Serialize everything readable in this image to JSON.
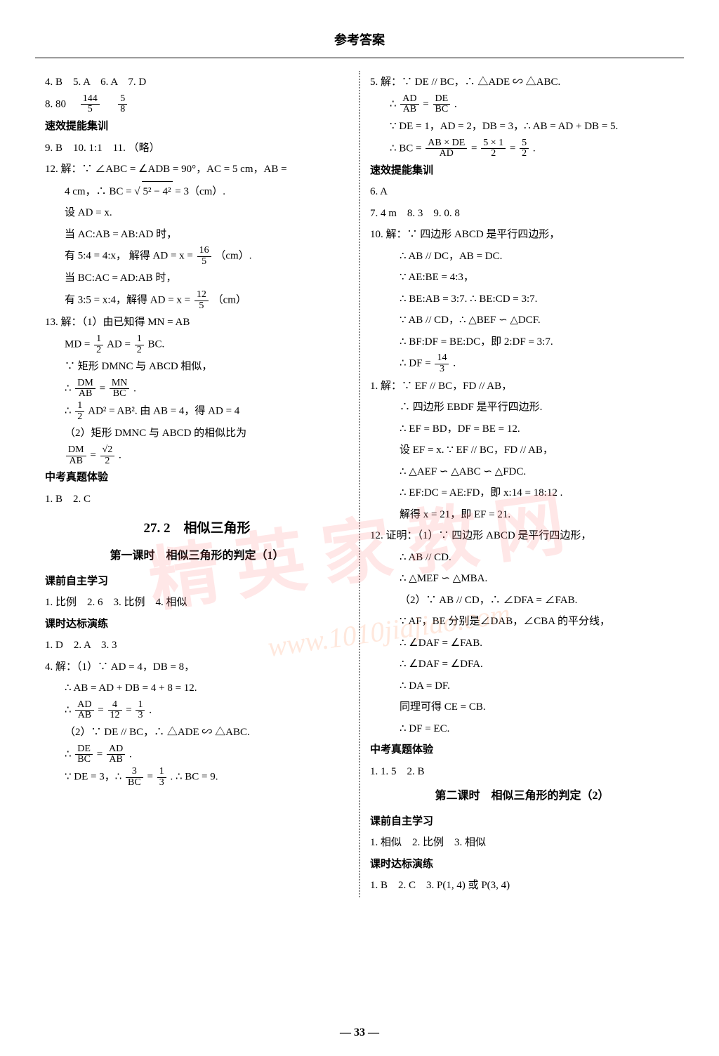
{
  "header": "参考答案",
  "page_number": "— 33 —",
  "watermark_main": "精英家教网",
  "watermark_url": "www.1010jiajiao.com",
  "left": {
    "l1": "4. B　5. A　6. A　7. D",
    "l2a": "8. 80　",
    "f1n": "144",
    "f1d": "5",
    "f2n": "5",
    "f2d": "8",
    "sec1": "速效提能集训",
    "l3": "9. B　10. 1:1　11. （略）",
    "l4": "12. 解：∵ ∠ABC = ∠ADB = 90°，AC = 5 cm，AB =",
    "l5a": "4 cm，∴ BC = ",
    "l5sqrt": "5² − 4²",
    "l5b": " = 3（cm）.",
    "l6": "设 AD = x.",
    "l7": "当 AC:AB = AB:AD 时，",
    "l8a": "有 5:4 = 4:x， 解得 AD = x = ",
    "f3n": "16",
    "f3d": "5",
    "l8b": "（cm）.",
    "l9": "当 BC:AC = AD:AB 时，",
    "l10a": "有 3:5 = x:4，解得 AD = x = ",
    "f4n": "12",
    "f4d": "5",
    "l10b": "（cm）",
    "l11": "13. 解：（1）由已知得 MN = AB",
    "l12a": "MD = ",
    "f5n": "1",
    "f5d": "2",
    "l12b": "AD = ",
    "f6n": "1",
    "f6d": "2",
    "l12c": "BC.",
    "l13": "∵ 矩形 DMNC 与 ABCD 相似，",
    "l14a": "∴ ",
    "f7n": "DM",
    "f7d": "AB",
    "l14b": " = ",
    "f8n": "MN",
    "f8d": "BC",
    "l14c": ".",
    "l15a": "∴ ",
    "f9n": "1",
    "f9d": "2",
    "l15b": "AD² = AB². 由 AB = 4，得 AD = 4",
    "l16": "（2）矩形 DMNC 与 ABCD 的相似比为",
    "l17a": "",
    "f10n": "DM",
    "f10d": "AB",
    "l17b": " = ",
    "f11n": "√2",
    "f11d": "2",
    "l17c": ".",
    "sec2": "中考真题体验",
    "l18": "1. B　2. C",
    "title272": "27. 2　相似三角形",
    "lesson1": "第一课时　相似三角形的判定（1）",
    "sec3": "课前自主学习",
    "l19": "1. 比例　2. 6　3. 比例　4. 相似",
    "sec4": "课时达标演练",
    "l20": "1. D　2. A　3. 3",
    "l21": "4. 解：（1）∵ AD = 4，DB = 8，",
    "l22": "∴ AB = AD + DB = 4 + 8 = 12.",
    "l23a": "∴ ",
    "f12n": "AD",
    "f12d": "AB",
    "l23b": " = ",
    "f13n": "4",
    "f13d": "12",
    "l23c": " = ",
    "f14n": "1",
    "f14d": "3",
    "l23d": ".",
    "l24": "（2）∵ DE // BC，∴ △ADE ∽ △ABC.",
    "l25a": "∴ ",
    "f15n": "DE",
    "f15d": "BC",
    "l25b": " = ",
    "f16n": "AD",
    "f16d": "AB",
    "l25c": ".",
    "l26a": "∵ DE = 3，∴ ",
    "f17n": "3",
    "f17d": "BC",
    "l26b": " = ",
    "f18n": "1",
    "f18d": "3",
    "l26c": ". ∴ BC = 9."
  },
  "right": {
    "r1": "5. 解：∵ DE // BC，∴ △ADE ∽ △ABC.",
    "r2a": "∴ ",
    "rf1n": "AD",
    "rf1d": "AB",
    "r2b": " = ",
    "rf2n": "DE",
    "rf2d": "BC",
    "r2c": ".",
    "r3": "∵ DE = 1，AD = 2，DB = 3，∴ AB = AD + DB = 5.",
    "r4a": "∴ BC = ",
    "rf3n": "AB × DE",
    "rf3d": "AD",
    "r4b": " = ",
    "rf4n": "5 × 1",
    "rf4d": "2",
    "r4c": " = ",
    "rf5n": "5",
    "rf5d": "2",
    "r4d": ".",
    "rsec1": "速效提能集训",
    "r5": "6. A",
    "r6": "7. 4 m　8. 3　9. 0. 8",
    "r7": "10. 解：∵ 四边形 ABCD 是平行四边形，",
    "r8": "∴ AB // DC，AB = DC.",
    "r9": "∵ AE:BE = 4:3，",
    "r10": "∴ BE:AB = 3:7. ∴ BE:CD = 3:7.",
    "r11": "∵ AB // CD，∴ △BEF ∽ △DCF.",
    "r12": "∴ BF:DF = BE:DC，即 2:DF = 3:7.",
    "r13a": "∴ DF = ",
    "rf6n": "14",
    "rf6d": "3",
    "r13b": ".",
    "r14": "1. 解：∵ EF // BC，FD // AB，",
    "r15": "∴ 四边形 EBDF 是平行四边形.",
    "r16": "∴ EF = BD，DF = BE = 12.",
    "r17": "设 EF = x. ∵ EF // BC，FD // AB，",
    "r18": "∴ △AEF ∽ △ABC ∽ △FDC.",
    "r19": "∴ EF:DC = AE:FD，即 x:14 = 18:12 .",
    "r20": "解得 x = 21，即 EF = 21.",
    "r21": "12. 证明：（1）∵ 四边形 ABCD 是平行四边形，",
    "r22": "∴ AB // CD.",
    "r23": "∴ △MEF ∽ △MBA.",
    "r24": "（2）∵ AB // CD，∴ ∠DFA = ∠FAB.",
    "r25": "∵ AF，BE 分别是∠DAB，∠CBA 的平分线，",
    "r26": "∴ ∠DAF = ∠FAB.",
    "r27": "∴ ∠DAF = ∠DFA.",
    "r28": "∴ DA = DF.",
    "r29": "同理可得 CE = CB.",
    "r30": "∴ DF = EC.",
    "rsec2": "中考真题体验",
    "r31": "1. 1. 5　2. B",
    "rlesson2": "第二课时　相似三角形的判定（2）",
    "rsec3": "课前自主学习",
    "r32": "1. 相似　2. 比例　3. 相似",
    "rsec4": "课时达标演练",
    "r33": "1. B　2. C　3. P(1, 4) 或 P(3, 4)"
  }
}
